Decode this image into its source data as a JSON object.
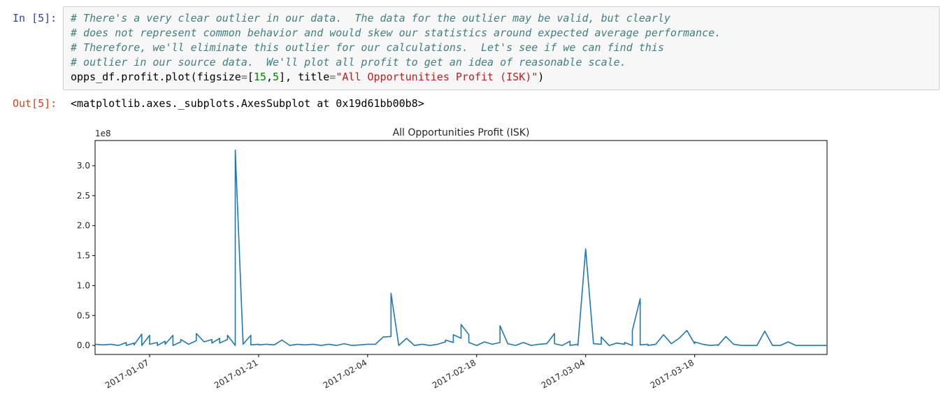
{
  "cell_in": {
    "prompt": "In [5]:",
    "comments": [
      "# There's a very clear outlier in our data.  The data for the outlier may be valid, but clearly",
      "# does not represent common behavior and would skew our statistics around expected average performance.",
      "# Therefore, we'll eliminate this outlier for our calculations.  Let's see if we can find this",
      "# outlier in our source data.  We'll plot all profit to get an idea of reasonable scale."
    ],
    "code": {
      "call": "opps_df.profit.plot(figsize",
      "eq1": "=",
      "bracket_open": "[",
      "n1": "15",
      "comma": ",",
      "n2": "5",
      "bracket_close": "], title",
      "eq2": "=",
      "str": "\"All Opportunities Profit (ISK)\"",
      "close": ")"
    }
  },
  "cell_out": {
    "prompt": "Out[5]:",
    "text": "<matplotlib.axes._subplots.AxesSubplot at 0x19d61bb00b8>"
  },
  "chart_data": {
    "type": "line",
    "title": "All Opportunities Profit (ISK)",
    "xlabel": "",
    "ylabel": "",
    "offset_label": "1e8",
    "color": "#1f77b4",
    "xlim": [
      "2016-12-31",
      "2017-04-04"
    ],
    "ylim": [
      -0.15,
      3.42
    ],
    "yticks": [
      0.0,
      0.5,
      1.0,
      1.5,
      2.0,
      2.5,
      3.0
    ],
    "ytick_labels": [
      "0.0",
      "0.5",
      "1.0",
      "1.5",
      "2.0",
      "2.5",
      "3.0"
    ],
    "xticks": [
      "2017-01-07",
      "2017-01-21",
      "2017-02-04",
      "2017-02-18",
      "2017-03-04",
      "2017-03-18"
    ],
    "series": [
      {
        "x": [
          "2016-12-31",
          "2017-01-01",
          "2017-01-02",
          "2017-01-03",
          "2017-01-04",
          "2017-01-04",
          "2017-01-05",
          "2017-01-05",
          "2017-01-06",
          "2017-01-06",
          "2017-01-07",
          "2017-01-07",
          "2017-01-08",
          "2017-01-08",
          "2017-01-09",
          "2017-01-09",
          "2017-01-10",
          "2017-01-10",
          "2017-01-11",
          "2017-01-11",
          "2017-01-12",
          "2017-01-13",
          "2017-01-13",
          "2017-01-14",
          "2017-01-15",
          "2017-01-15",
          "2017-01-16",
          "2017-01-16",
          "2017-01-17",
          "2017-01-17",
          "2017-01-18",
          "2017-01-18",
          "2017-01-19",
          "2017-01-19",
          "2017-01-19",
          "2017-01-20",
          "2017-01-20",
          "2017-01-21",
          "2017-01-21",
          "2017-01-22",
          "2017-01-23",
          "2017-01-24",
          "2017-01-25",
          "2017-01-26",
          "2017-01-27",
          "2017-01-28",
          "2017-01-29",
          "2017-01-30",
          "2017-01-31",
          "2017-02-01",
          "2017-02-02",
          "2017-02-03",
          "2017-02-04",
          "2017-02-05",
          "2017-02-06",
          "2017-02-07",
          "2017-02-07",
          "2017-02-08",
          "2017-02-09",
          "2017-02-10",
          "2017-02-11",
          "2017-02-12",
          "2017-02-13",
          "2017-02-14",
          "2017-02-14",
          "2017-02-15",
          "2017-02-15",
          "2017-02-16",
          "2017-02-16",
          "2017-02-17",
          "2017-02-17",
          "2017-02-18",
          "2017-02-19",
          "2017-02-20",
          "2017-02-21",
          "2017-02-21",
          "2017-02-22",
          "2017-02-23",
          "2017-02-24",
          "2017-02-25",
          "2017-02-26",
          "2017-02-27",
          "2017-02-28",
          "2017-02-28",
          "2017-03-01",
          "2017-03-02",
          "2017-03-02",
          "2017-03-03",
          "2017-03-03",
          "2017-03-04",
          "2017-03-05",
          "2017-03-06",
          "2017-03-06",
          "2017-03-07",
          "2017-03-08",
          "2017-03-09",
          "2017-03-09",
          "2017-03-10",
          "2017-03-10",
          "2017-03-11",
          "2017-03-11",
          "2017-03-12",
          "2017-03-12",
          "2017-03-13",
          "2017-03-14",
          "2017-03-15",
          "2017-03-16",
          "2017-03-17",
          "2017-03-18",
          "2017-03-18",
          "2017-03-19",
          "2017-03-20",
          "2017-03-21",
          "2017-03-21",
          "2017-03-22",
          "2017-03-23",
          "2017-03-24",
          "2017-03-25",
          "2017-03-26",
          "2017-03-27",
          "2017-03-28",
          "2017-03-29",
          "2017-03-30",
          "2017-03-31",
          "2017-04-01",
          "2017-04-02",
          "2017-04-03",
          "2017-04-04"
        ],
        "y": [
          0.02,
          0.01,
          0.02,
          0.0,
          0.05,
          0.0,
          0.04,
          0.01,
          0.19,
          0.0,
          0.17,
          0.02,
          0.05,
          0.0,
          0.07,
          0.02,
          0.17,
          0.0,
          0.06,
          0.1,
          0.02,
          0.08,
          0.2,
          0.06,
          0.1,
          0.04,
          0.12,
          0.04,
          0.1,
          0.17,
          0.0,
          3.26,
          0.05,
          0.12,
          0.02,
          0.17,
          0.01,
          0.02,
          0.01,
          0.02,
          0.01,
          0.09,
          0.0,
          0.02,
          0.01,
          0.02,
          0.0,
          0.02,
          0.0,
          0.03,
          0.0,
          0.01,
          0.02,
          0.02,
          0.14,
          0.15,
          0.87,
          0.0,
          0.12,
          0.0,
          0.02,
          0.0,
          0.02,
          0.06,
          0.09,
          0.05,
          0.18,
          0.12,
          0.35,
          0.18,
          0.05,
          0.0,
          0.06,
          0.02,
          0.05,
          0.33,
          0.03,
          0.0,
          0.05,
          0.0,
          0.02,
          0.03,
          0.2,
          0.03,
          0.0,
          0.07,
          0.0,
          0.02,
          0.0,
          1.61,
          0.03,
          0.02,
          0.14,
          0.0,
          0.04,
          0.02,
          0.05,
          0.0,
          0.25,
          0.78,
          0.01,
          0.02,
          0.0,
          0.02,
          0.18,
          0.03,
          0.12,
          0.25,
          0.03,
          0.06,
          0.02,
          0.0,
          0.01,
          0.0,
          0.15,
          0.02,
          0.0,
          0.0,
          0.0,
          0.24,
          0.0,
          0.0,
          0.06,
          0.0,
          0.0,
          0.0,
          0.0,
          0.0
        ]
      }
    ]
  }
}
